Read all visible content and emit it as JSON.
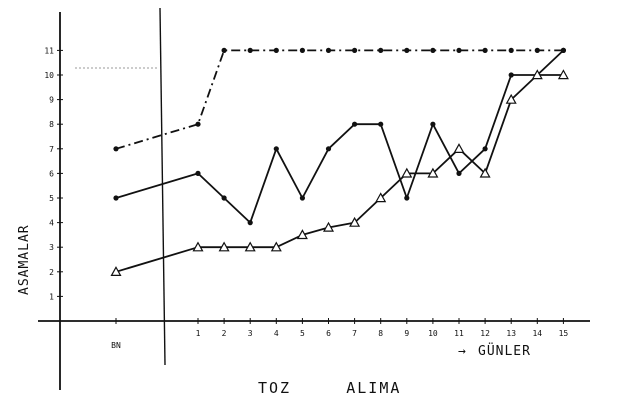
{
  "chart_data": {
    "type": "line",
    "title": "TOZ     ALIMA",
    "ylabel": "ASAMALAR",
    "xlabel": "GÜNLER",
    "x_ticks": [
      "BN",
      "1",
      "2",
      "3",
      "4",
      "5",
      "6",
      "7",
      "8",
      "9",
      "10",
      "11",
      "12",
      "13",
      "14",
      "15"
    ],
    "y_ticks": [
      "1",
      "2",
      "3",
      "4",
      "5",
      "6",
      "7",
      "8",
      "9",
      "10",
      "11"
    ],
    "ylim": [
      0,
      11.5
    ],
    "grid": false,
    "series": [
      {
        "style": "dash-dot",
        "marker": "dot",
        "points": [
          {
            "x": "BN",
            "y": 7
          },
          {
            "x": "1",
            "y": 8
          },
          {
            "x": "2",
            "y": 11
          },
          {
            "x": "3",
            "y": 11
          },
          {
            "x": "4",
            "y": 11
          },
          {
            "x": "5",
            "y": 11
          },
          {
            "x": "6",
            "y": 11
          },
          {
            "x": "7",
            "y": 11
          },
          {
            "x": "8",
            "y": 11
          },
          {
            "x": "9",
            "y": 11
          },
          {
            "x": "10",
            "y": 11
          },
          {
            "x": "11",
            "y": 11
          },
          {
            "x": "12",
            "y": 11
          },
          {
            "x": "13",
            "y": 11
          },
          {
            "x": "14",
            "y": 11
          },
          {
            "x": "15",
            "y": 11
          }
        ]
      },
      {
        "style": "solid",
        "marker": "dot",
        "points": [
          {
            "x": "BN",
            "y": 5
          },
          {
            "x": "1",
            "y": 6
          },
          {
            "x": "2",
            "y": 5
          },
          {
            "x": "3",
            "y": 4
          },
          {
            "x": "4",
            "y": 7
          },
          {
            "x": "5",
            "y": 5
          },
          {
            "x": "6",
            "y": 7
          },
          {
            "x": "7",
            "y": 8
          },
          {
            "x": "8",
            "y": 8
          },
          {
            "x": "9",
            "y": 5
          },
          {
            "x": "10",
            "y": 8
          },
          {
            "x": "11",
            "y": 6
          },
          {
            "x": "12",
            "y": 7
          },
          {
            "x": "13",
            "y": 10
          },
          {
            "x": "14",
            "y": 10
          },
          {
            "x": "15",
            "y": 11
          }
        ]
      },
      {
        "style": "solid",
        "marker": "triangle",
        "points": [
          {
            "x": "BN",
            "y": 2
          },
          {
            "x": "1",
            "y": 3
          },
          {
            "x": "2",
            "y": 3
          },
          {
            "x": "3",
            "y": 3
          },
          {
            "x": "4",
            "y": 3
          },
          {
            "x": "5",
            "y": 3.5
          },
          {
            "x": "6",
            "y": 3.8
          },
          {
            "x": "7",
            "y": 4
          },
          {
            "x": "8",
            "y": 5
          },
          {
            "x": "9",
            "y": 6
          },
          {
            "x": "10",
            "y": 6
          },
          {
            "x": "11",
            "y": 7
          },
          {
            "x": "12",
            "y": 6
          },
          {
            "x": "13",
            "y": 9
          },
          {
            "x": "14",
            "y": 10
          },
          {
            "x": "15",
            "y": 10
          }
        ]
      }
    ]
  }
}
